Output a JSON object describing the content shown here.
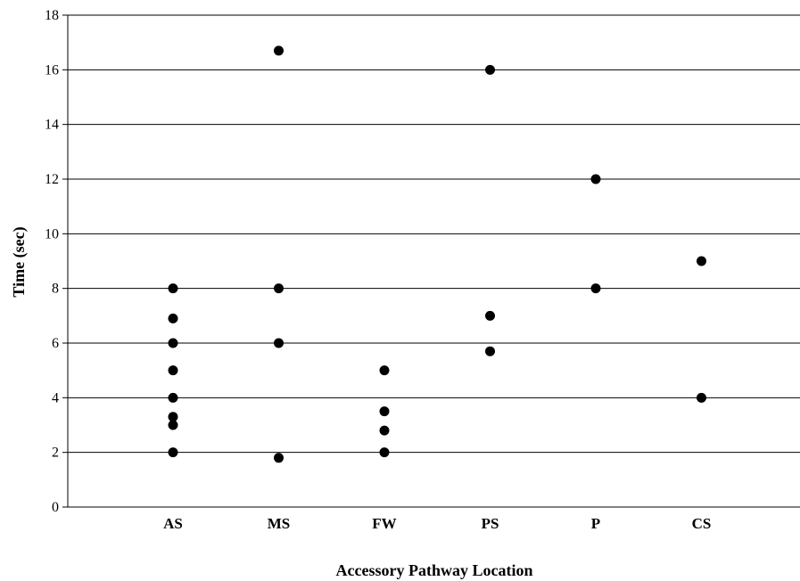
{
  "chart_data": {
    "type": "scatter",
    "title": "",
    "xlabel": "Accessory Pathway Location",
    "ylabel": "Time (sec)",
    "categories": [
      "AS",
      "MS",
      "FW",
      "PS",
      "P",
      "CS"
    ],
    "ylim": [
      0,
      18
    ],
    "yticks": [
      "0",
      "2",
      "4",
      "6",
      "8",
      "10",
      "12",
      "14",
      "16",
      "18"
    ],
    "grid": true,
    "legend": "none",
    "marker_color": "#000000",
    "points": [
      {
        "x": "AS",
        "y": 8
      },
      {
        "x": "AS",
        "y": 6.9
      },
      {
        "x": "AS",
        "y": 6
      },
      {
        "x": "AS",
        "y": 5
      },
      {
        "x": "AS",
        "y": 4
      },
      {
        "x": "AS",
        "y": 3.3
      },
      {
        "x": "AS",
        "y": 3
      },
      {
        "x": "AS",
        "y": 2
      },
      {
        "x": "MS",
        "y": 16.7
      },
      {
        "x": "MS",
        "y": 8
      },
      {
        "x": "MS",
        "y": 6
      },
      {
        "x": "MS",
        "y": 1.8
      },
      {
        "x": "FW",
        "y": 5
      },
      {
        "x": "FW",
        "y": 3.5
      },
      {
        "x": "FW",
        "y": 2.8
      },
      {
        "x": "FW",
        "y": 2
      },
      {
        "x": "PS",
        "y": 16
      },
      {
        "x": "PS",
        "y": 7
      },
      {
        "x": "PS",
        "y": 5.7
      },
      {
        "x": "P",
        "y": 12
      },
      {
        "x": "P",
        "y": 8
      },
      {
        "x": "CS",
        "y": 9
      },
      {
        "x": "CS",
        "y": 4
      }
    ]
  }
}
